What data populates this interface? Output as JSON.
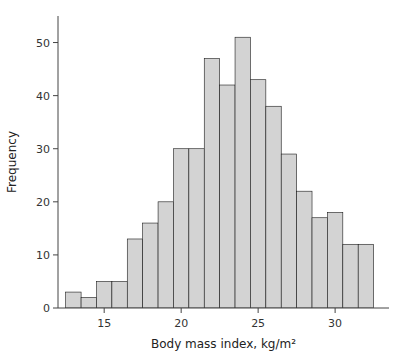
{
  "chart_data": {
    "type": "histogram",
    "xlabel": "Body mass index, kg/m²",
    "ylabel": "Frequency",
    "bins": [
      12.5,
      13.5,
      14.5,
      15.5,
      16.5,
      17.5,
      18.5,
      19.5,
      20.5,
      21.5,
      22.5,
      23.5,
      24.5,
      25.5,
      26.5,
      27.5,
      28.5,
      29.5,
      30.5,
      31.5,
      32.5
    ],
    "values": [
      3,
      2,
      5,
      5,
      13,
      16,
      20,
      30,
      30,
      47,
      42,
      51,
      43,
      38,
      29,
      22,
      17,
      18,
      12,
      12
    ],
    "color": "#d3d3d3",
    "xlim": [
      12.0,
      33.5
    ],
    "ylim": [
      0,
      55
    ],
    "xticks": [
      15.0,
      20.0,
      25.0,
      30.0
    ],
    "yticks": [
      0,
      10,
      20,
      30,
      40,
      50
    ],
    "grid": false
  }
}
